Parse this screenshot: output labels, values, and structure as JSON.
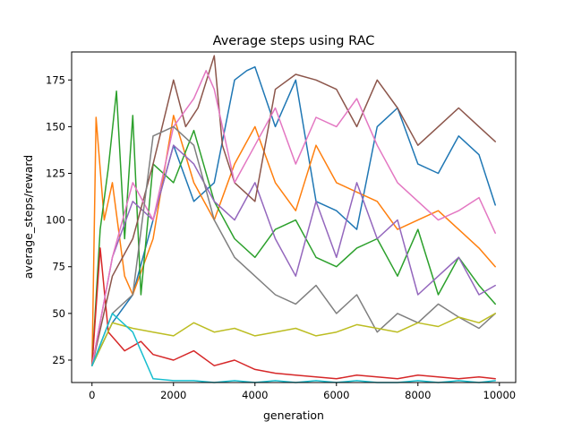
{
  "chart_data": {
    "type": "line",
    "title": "Average steps using RAC",
    "xlabel": "generation",
    "ylabel": "average_steps/reward",
    "xlim": [
      -500,
      10400
    ],
    "ylim": [
      13,
      190
    ],
    "xticks": [
      0,
      2000,
      4000,
      6000,
      8000,
      10000
    ],
    "yticks": [
      25,
      50,
      75,
      100,
      125,
      150,
      175
    ],
    "grid": false,
    "legend": "none",
    "palette": [
      "#1f77b4",
      "#ff7f0e",
      "#2ca02c",
      "#d62728",
      "#9467bd",
      "#8c564b",
      "#e377c2",
      "#7f7f7f",
      "#bcbd22",
      "#17becf"
    ],
    "series": [
      {
        "color": "#1f77b4",
        "x": [
          0,
          500,
          1000,
          1500,
          2000,
          2500,
          3000,
          3500,
          3800,
          4000,
          4500,
          5000,
          5500,
          6000,
          6500,
          7000,
          7500,
          8000,
          8500,
          9000,
          9500,
          9900
        ],
        "y": [
          22,
          45,
          60,
          100,
          140,
          110,
          120,
          175,
          180,
          182,
          150,
          175,
          110,
          105,
          95,
          150,
          160,
          130,
          125,
          145,
          135,
          108
        ]
      },
      {
        "color": "#ff7f0e",
        "x": [
          0,
          100,
          300,
          500,
          800,
          1000,
          1500,
          2000,
          2500,
          3000,
          3500,
          4000,
          4500,
          5000,
          5500,
          6000,
          6500,
          7000,
          7500,
          8000,
          8500,
          9000,
          9500,
          9900
        ],
        "y": [
          22,
          155,
          100,
          120,
          70,
          60,
          90,
          156,
          120,
          100,
          130,
          150,
          120,
          105,
          140,
          120,
          115,
          110,
          95,
          100,
          105,
          95,
          85,
          75
        ]
      },
      {
        "color": "#2ca02c",
        "x": [
          0,
          200,
          400,
          600,
          800,
          1000,
          1200,
          1500,
          2000,
          2500,
          3000,
          3500,
          4000,
          4500,
          5000,
          5500,
          6000,
          6500,
          7000,
          7500,
          8000,
          8500,
          9000,
          9500,
          9900
        ],
        "y": [
          22,
          95,
          128,
          169,
          90,
          156,
          60,
          130,
          120,
          148,
          110,
          90,
          80,
          95,
          100,
          80,
          75,
          85,
          90,
          70,
          95,
          60,
          80,
          65,
          55
        ]
      },
      {
        "color": "#d62728",
        "x": [
          0,
          200,
          400,
          800,
          1200,
          1500,
          2000,
          2500,
          3000,
          3500,
          4000,
          4500,
          5000,
          5500,
          6000,
          6500,
          7000,
          7500,
          8000,
          8500,
          9000,
          9500,
          9900
        ],
        "y": [
          22,
          85,
          40,
          30,
          35,
          28,
          25,
          30,
          22,
          25,
          20,
          18,
          17,
          16,
          15,
          17,
          16,
          15,
          17,
          16,
          15,
          16,
          15
        ]
      },
      {
        "color": "#9467bd",
        "x": [
          0,
          500,
          1000,
          1500,
          2000,
          2500,
          3000,
          3500,
          4000,
          4500,
          5000,
          5500,
          6000,
          6500,
          7000,
          7500,
          8000,
          8500,
          9000,
          9500,
          9900
        ],
        "y": [
          22,
          80,
          110,
          100,
          140,
          130,
          110,
          100,
          120,
          90,
          70,
          110,
          80,
          120,
          90,
          100,
          60,
          70,
          80,
          60,
          65
        ]
      },
      {
        "color": "#8c564b",
        "x": [
          0,
          500,
          1000,
          1500,
          2000,
          2300,
          2600,
          3000,
          3200,
          3500,
          4000,
          4500,
          5000,
          5500,
          6000,
          6500,
          7000,
          7500,
          8000,
          8500,
          9000,
          9500,
          9900
        ],
        "y": [
          22,
          70,
          90,
          130,
          175,
          150,
          160,
          188,
          140,
          120,
          110,
          170,
          178,
          175,
          170,
          150,
          175,
          160,
          140,
          150,
          160,
          150,
          142
        ]
      },
      {
        "color": "#e377c2",
        "x": [
          0,
          500,
          1000,
          1500,
          2000,
          2500,
          2800,
          3000,
          3500,
          4000,
          4500,
          5000,
          5500,
          6000,
          6500,
          7000,
          7500,
          8000,
          8500,
          9000,
          9500,
          9900
        ],
        "y": [
          22,
          80,
          120,
          100,
          150,
          165,
          180,
          170,
          120,
          140,
          160,
          130,
          155,
          150,
          165,
          140,
          120,
          110,
          100,
          105,
          112,
          93
        ]
      },
      {
        "color": "#7f7f7f",
        "x": [
          0,
          500,
          1000,
          1500,
          2000,
          2500,
          3000,
          3500,
          4000,
          4500,
          5000,
          5500,
          6000,
          6500,
          7000,
          7500,
          8000,
          8500,
          9000,
          9500,
          9900
        ],
        "y": [
          22,
          50,
          60,
          145,
          150,
          140,
          100,
          80,
          70,
          60,
          55,
          65,
          50,
          60,
          40,
          50,
          45,
          55,
          48,
          42,
          50
        ]
      },
      {
        "color": "#bcbd22",
        "x": [
          0,
          500,
          1000,
          1500,
          2000,
          2500,
          3000,
          3500,
          4000,
          4500,
          5000,
          5500,
          6000,
          6500,
          7000,
          7500,
          8000,
          8500,
          9000,
          9500,
          9900
        ],
        "y": [
          22,
          45,
          42,
          40,
          38,
          45,
          40,
          42,
          38,
          40,
          42,
          38,
          40,
          44,
          42,
          40,
          45,
          43,
          48,
          45,
          50
        ]
      },
      {
        "color": "#17becf",
        "x": [
          0,
          500,
          1000,
          1500,
          2000,
          2500,
          3000,
          3500,
          4000,
          4500,
          5000,
          5500,
          6000,
          6500,
          7000,
          7500,
          8000,
          8500,
          9000,
          9500,
          9900
        ],
        "y": [
          22,
          50,
          40,
          15,
          14,
          14,
          13,
          14,
          13,
          14,
          13,
          14,
          13,
          14,
          13,
          13,
          14,
          13,
          14,
          13,
          14
        ]
      }
    ]
  }
}
